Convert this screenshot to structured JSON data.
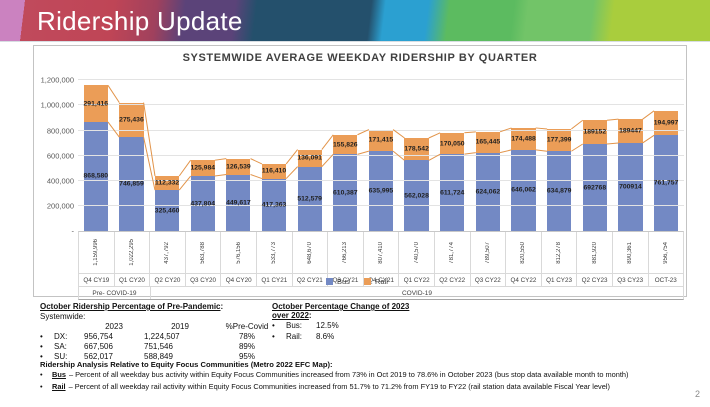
{
  "header": {
    "title": "Ridership Update"
  },
  "chart": {
    "title": "SYSTEMWIDE AVERAGE WEEKDAY RIDERSHIP BY QUARTER",
    "legend": {
      "bus": "Bus",
      "rail": "Rail"
    },
    "colors": {
      "bus": "#7389c4",
      "rail": "#eb9d57",
      "series_line": "#e2944a"
    }
  },
  "chart_data": {
    "type": "bar",
    "stacked": true,
    "title": "SYSTEMWIDE AVERAGE WEEKDAY RIDERSHIP BY QUARTER",
    "categories": [
      "Q4 CY19",
      "Q1 CY20",
      "Q2 CY20",
      "Q3 CY20",
      "Q4 CY20",
      "Q1 CY21",
      "Q2 CY21",
      "Q3 CY21",
      "Q4 CY21",
      "Q1 CY22",
      "Q2 CY22",
      "Q3 CY22",
      "Q4 CY22",
      "Q1 CY23",
      "Q2 CY23",
      "Q3 CY23",
      "OCT-23"
    ],
    "series": [
      {
        "name": "Bus",
        "color": "#7389c4",
        "values": [
          868580,
          746859,
          325460,
          437804,
          449617,
          417363,
          512579,
          610387,
          635995,
          562028,
          611724,
          624062,
          646062,
          634879,
          692768,
          700914,
          761757
        ],
        "labels": [
          "868,580",
          "746,859",
          "325,460",
          "437,804",
          "449,617",
          "417,363",
          "512,579",
          "610,387",
          "635,995",
          "562,028",
          "611,724",
          "624,062",
          "646,062",
          "634,879",
          "692768",
          "700914",
          "761,757"
        ]
      },
      {
        "name": "Rail",
        "color": "#eb9d57",
        "values": [
          291416,
          275436,
          112332,
          125984,
          126539,
          116410,
          136091,
          155826,
          171415,
          178542,
          170050,
          165445,
          174488,
          177399,
          189152,
          189447,
          194997
        ],
        "labels": [
          "291,416",
          "275,436",
          "112,332",
          "125,984",
          "126,539",
          "116,410",
          "136,091",
          "155,826",
          "171,415",
          "178,542",
          "170,050",
          "165,445",
          "174,488",
          "177,399",
          "189152",
          "189447",
          "194,997"
        ]
      }
    ],
    "totals_labels": [
      "1,159,996",
      "1,022,295",
      "437,792",
      "563,788",
      "576,156",
      "533,773",
      "648,670",
      "766,213",
      "807,410",
      "740,570",
      "781,774",
      "789,507",
      "820,550",
      "812,278",
      "881,920",
      "890,361",
      "956,754"
    ],
    "y_axis": {
      "tick_values": [
        1200000,
        1000000,
        800000,
        600000,
        400000,
        200000,
        0
      ],
      "tick_labels": [
        "1,200,000",
        "1,000,000",
        "800,000",
        "600,000",
        "400,000",
        "200,000",
        "-"
      ]
    },
    "ylim": [
      0,
      1250000
    ],
    "grid": true,
    "legend_position": "bottom-center",
    "category_groups": [
      {
        "label": "Pre- COVID-19",
        "start": 0,
        "end": 1
      },
      {
        "label": "COVID-19",
        "start": 2,
        "end": 16
      }
    ]
  },
  "notes": {
    "pre_pandemic": {
      "heading": "October Ridership Percentage of Pre-Pandemic",
      "heading_colon": ":",
      "subheading": "Systemwide:",
      "col_headers": [
        "2023",
        "2019",
        "%Pre-Covid"
      ],
      "rows": [
        {
          "label": "DX:",
          "y2023": "956,754",
          "y2019": "1,224,507",
          "pct": "78%"
        },
        {
          "label": "SA:",
          "y2023": "667,506",
          "y2019": "751,546",
          "pct": "89%"
        },
        {
          "label": "SU:",
          "y2023": "562,017",
          "y2019": "588,849",
          "pct": "95%"
        }
      ]
    },
    "change": {
      "heading_line1": "October Percentage Change of 2023",
      "heading_line2": "over 2022",
      "heading_colon": ":",
      "items": [
        {
          "label": "Bus:",
          "value": "12.5%"
        },
        {
          "label": "Rail:",
          "value": "8.6%"
        }
      ]
    },
    "efc": {
      "heading": "Ridership Analysis Relative to Equity Focus Communities (Metro 2022 EFC Map):",
      "items": [
        {
          "term": "Bus",
          "text": "– Percent of all weekday bus activity within Equity Focus Communities increased from 73% in Oct 2019 to 78.6% in October 2023 (bus stop data available month to month)"
        },
        {
          "term": "Rail",
          "text": "– Percent of all weekday rail activity within Equity Focus Communities increased from 51.7% to 71.2% from FY19 to FY22 (rail station data available Fiscal Year level)"
        }
      ]
    }
  },
  "page_number": "2"
}
